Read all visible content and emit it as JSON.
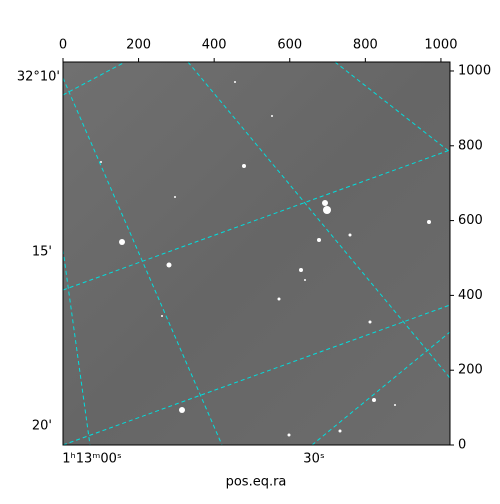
{
  "chart_data": {
    "type": "image",
    "xlabel": "pos.eq.ra",
    "xlim": [
      0,
      1024
    ],
    "ylim": [
      0,
      1024
    ],
    "xticks": [
      0,
      200,
      400,
      600,
      800,
      1000
    ],
    "yticks": [
      0,
      200,
      400,
      600,
      800,
      1000
    ],
    "ra_tick_labels": [
      "1ʰ13ᵐ00ˢ",
      "30ˢ"
    ],
    "dec_tick_labels": [
      "32°10'",
      "15'",
      "20'"
    ],
    "grid_color": "#00dede"
  }
}
